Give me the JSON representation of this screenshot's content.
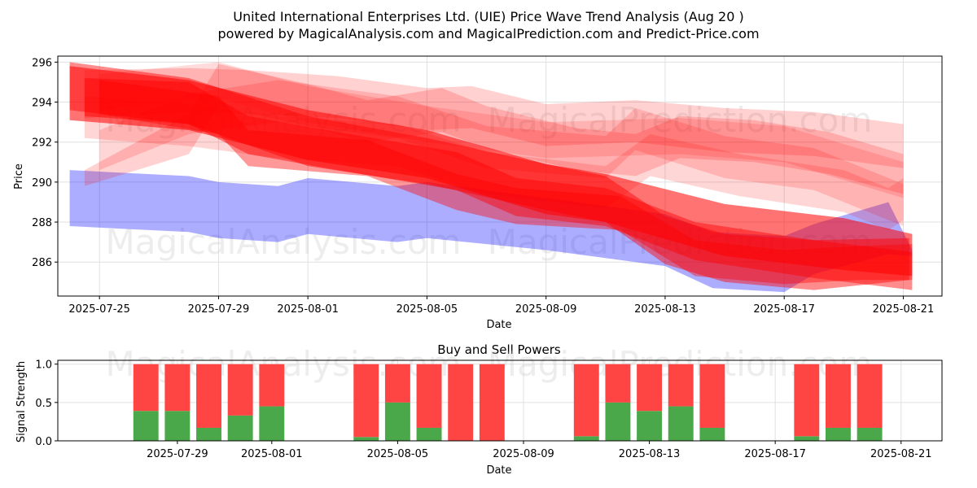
{
  "title_line1": "United International Enterprises Ltd. (UIE) Price Wave Trend Analysis (Aug 20 )",
  "title_line2": "powered by MagicalAnalysis.com and MagicalPrediction.com and Predict-Price.com",
  "watermark_left": "MagicalAnalysis.com",
  "watermark_right": "MagicalPrediction.com",
  "colors": {
    "red": "#ff0000",
    "blue": "#0000ff",
    "buy": "#4aa84a",
    "sell": "#ff4444",
    "grid": "#e0e0e0"
  },
  "chart_data": [
    {
      "type": "area",
      "title": "",
      "xlabel": "Date",
      "ylabel": "Price",
      "xlim": [
        -4.4,
        25.3
      ],
      "ylim": [
        284.3,
        296.3
      ],
      "x_ticks": [
        {
          "day": -3,
          "label": "2025-07-25"
        },
        {
          "day": 1,
          "label": "2025-07-29"
        },
        {
          "day": 4,
          "label": "2025-08-01"
        },
        {
          "day": 8,
          "label": "2025-08-05"
        },
        {
          "day": 12,
          "label": "2025-08-09"
        },
        {
          "day": 16,
          "label": "2025-08-13"
        },
        {
          "day": 20,
          "label": "2025-08-17"
        },
        {
          "day": 24,
          "label": "2025-08-21"
        }
      ],
      "y_ticks": [
        286,
        288,
        290,
        292,
        294,
        296
      ],
      "x_day_zero": "2025-07-28",
      "grid": true,
      "bands": [
        {
          "color": "blue",
          "opacity": 0.32,
          "points": [
            {
              "x": -4,
              "lo": 287.8,
              "hi": 290.6
            },
            {
              "x": 0,
              "lo": 287.5,
              "hi": 290.3
            },
            {
              "x": 1,
              "lo": 287.2,
              "hi": 290.0
            },
            {
              "x": 3,
              "lo": 287.0,
              "hi": 289.8
            },
            {
              "x": 4,
              "lo": 287.4,
              "hi": 290.2
            },
            {
              "x": 7,
              "lo": 287.0,
              "hi": 289.8
            },
            {
              "x": 8,
              "lo": 287.2,
              "hi": 290.0
            },
            {
              "x": 12,
              "lo": 286.6,
              "hi": 289.2
            },
            {
              "x": 16,
              "lo": 285.8,
              "hi": 288.4
            },
            {
              "x": 17.6,
              "lo": 284.7,
              "hi": 287.5
            },
            {
              "x": 20,
              "lo": 284.5,
              "hi": 287.3
            },
            {
              "x": 21,
              "lo": 285.4,
              "hi": 287.9
            },
            {
              "x": 23.5,
              "lo": 286.4,
              "hi": 289.0
            },
            {
              "x": 24.3,
              "lo": 286.3,
              "hi": 286.6
            }
          ]
        },
        {
          "color": "red",
          "opacity": 0.55,
          "points": [
            {
              "x": -4,
              "lo": 293.1,
              "hi": 295.8
            },
            {
              "x": 0,
              "lo": 292.6,
              "hi": 295.1
            },
            {
              "x": 4,
              "lo": 291.1,
              "hi": 293.6
            },
            {
              "x": 8,
              "lo": 290.2,
              "hi": 292.6
            },
            {
              "x": 12,
              "lo": 288.4,
              "hi": 290.9
            },
            {
              "x": 14,
              "lo": 288.0,
              "hi": 290.4
            },
            {
              "x": 18,
              "lo": 286.3,
              "hi": 288.9
            },
            {
              "x": 22,
              "lo": 285.6,
              "hi": 288.2
            },
            {
              "x": 24.3,
              "lo": 285.3,
              "hi": 287.4
            }
          ]
        },
        {
          "color": "red",
          "opacity": 0.45,
          "points": [
            {
              "x": -4,
              "lo": 293.6,
              "hi": 296.0
            },
            {
              "x": 0,
              "lo": 292.9,
              "hi": 295.2
            },
            {
              "x": 4,
              "lo": 290.8,
              "hi": 293.3
            },
            {
              "x": 8,
              "lo": 289.9,
              "hi": 292.2
            },
            {
              "x": 12,
              "lo": 288.6,
              "hi": 290.9
            },
            {
              "x": 14,
              "lo": 288.0,
              "hi": 290.3
            },
            {
              "x": 16,
              "lo": 285.9,
              "hi": 288.3
            },
            {
              "x": 18,
              "lo": 285.0,
              "hi": 287.4
            },
            {
              "x": 21,
              "lo": 284.6,
              "hi": 287.1
            },
            {
              "x": 24.2,
              "lo": 285.1,
              "hi": 287.2
            }
          ]
        },
        {
          "color": "red",
          "opacity": 0.45,
          "points": [
            {
              "x": -3.5,
              "lo": 293.3,
              "hi": 295.2
            },
            {
              "x": 0,
              "lo": 292.9,
              "hi": 295.0
            },
            {
              "x": 2,
              "lo": 291.4,
              "hi": 293.3
            },
            {
              "x": 5,
              "lo": 290.6,
              "hi": 292.5
            },
            {
              "x": 9,
              "lo": 289.6,
              "hi": 291.5
            },
            {
              "x": 11,
              "lo": 288.3,
              "hi": 290.2
            },
            {
              "x": 14,
              "lo": 287.8,
              "hi": 289.7
            },
            {
              "x": 17,
              "lo": 286.1,
              "hi": 288.0
            },
            {
              "x": 21,
              "lo": 285.2,
              "hi": 287.1
            },
            {
              "x": 24.3,
              "lo": 284.6,
              "hi": 286.5
            }
          ]
        },
        {
          "color": "red",
          "opacity": 0.4,
          "points": [
            {
              "x": -3,
              "lo": 293.4,
              "hi": 295.1
            },
            {
              "x": 1,
              "lo": 292.4,
              "hi": 294.3
            },
            {
              "x": 2,
              "lo": 290.8,
              "hi": 292.6
            },
            {
              "x": 6,
              "lo": 290.3,
              "hi": 292.1
            },
            {
              "x": 9,
              "lo": 288.6,
              "hi": 290.4
            },
            {
              "x": 11,
              "lo": 287.9,
              "hi": 289.7
            },
            {
              "x": 14.5,
              "lo": 287.6,
              "hi": 289.3
            },
            {
              "x": 17,
              "lo": 285.3,
              "hi": 287.1
            },
            {
              "x": 20,
              "lo": 284.9,
              "hi": 286.6
            },
            {
              "x": 22.5,
              "lo": 285.1,
              "hi": 286.8
            },
            {
              "x": 24.3,
              "lo": 285.1,
              "hi": 286.9
            }
          ]
        },
        {
          "color": "red",
          "opacity": 0.18,
          "points": [
            {
              "x": -3.5,
              "lo": 293.2,
              "hi": 295.6
            },
            {
              "x": 0,
              "lo": 293.5,
              "hi": 295.7
            },
            {
              "x": 2,
              "lo": 293.4,
              "hi": 295.6
            },
            {
              "x": 5,
              "lo": 293.2,
              "hi": 295.3
            },
            {
              "x": 8,
              "lo": 292.6,
              "hi": 294.7
            },
            {
              "x": 9.5,
              "lo": 292.7,
              "hi": 294.8
            },
            {
              "x": 12,
              "lo": 291.8,
              "hi": 293.9
            },
            {
              "x": 15,
              "lo": 292.0,
              "hi": 294.1
            },
            {
              "x": 18,
              "lo": 291.5,
              "hi": 293.7
            },
            {
              "x": 21,
              "lo": 291.3,
              "hi": 293.5
            },
            {
              "x": 24,
              "lo": 290.7,
              "hi": 292.9
            }
          ]
        },
        {
          "color": "red",
          "opacity": 0.18,
          "points": [
            {
              "x": -3.5,
              "lo": 289.8,
              "hi": 290.6
            },
            {
              "x": 0,
              "lo": 291.4,
              "hi": 293.4
            },
            {
              "x": 1,
              "lo": 293.8,
              "hi": 295.9
            },
            {
              "x": 4,
              "lo": 292.8,
              "hi": 294.9
            },
            {
              "x": 6,
              "lo": 292.0,
              "hi": 294.1
            },
            {
              "x": 8.5,
              "lo": 292.5,
              "hi": 294.7
            },
            {
              "x": 10,
              "lo": 291.7,
              "hi": 293.8
            },
            {
              "x": 13,
              "lo": 290.6,
              "hi": 292.7
            },
            {
              "x": 15,
              "lo": 290.3,
              "hi": 292.4
            },
            {
              "x": 16.5,
              "lo": 291.2,
              "hi": 293.3
            },
            {
              "x": 19,
              "lo": 291.0,
              "hi": 293.1
            },
            {
              "x": 21.5,
              "lo": 290.4,
              "hi": 292.5
            },
            {
              "x": 24,
              "lo": 289.4,
              "hi": 291.4
            }
          ]
        },
        {
          "color": "red",
          "opacity": 0.16,
          "points": [
            {
              "x": -3,
              "lo": 290.6,
              "hi": 292.6
            },
            {
              "x": 0,
              "lo": 292.4,
              "hi": 294.4
            },
            {
              "x": 3,
              "lo": 293.0,
              "hi": 295.1
            },
            {
              "x": 7,
              "lo": 292.2,
              "hi": 294.3
            },
            {
              "x": 10,
              "lo": 290.7,
              "hi": 292.8
            },
            {
              "x": 14,
              "lo": 290.2,
              "hi": 292.3
            },
            {
              "x": 15,
              "lo": 291.6,
              "hi": 293.7
            },
            {
              "x": 18,
              "lo": 290.2,
              "hi": 292.3
            },
            {
              "x": 21,
              "lo": 289.6,
              "hi": 291.7
            },
            {
              "x": 24,
              "lo": 287.8,
              "hi": 289.9
            }
          ]
        },
        {
          "color": "red",
          "opacity": 0.16,
          "points": [
            {
              "x": -3.5,
              "lo": 292.2,
              "hi": 294.3
            },
            {
              "x": 0,
              "lo": 291.8,
              "hi": 293.9
            },
            {
              "x": 3,
              "lo": 291.2,
              "hi": 293.3
            },
            {
              "x": 7,
              "lo": 290.8,
              "hi": 292.9
            },
            {
              "x": 10,
              "lo": 289.4,
              "hi": 291.5
            },
            {
              "x": 14,
              "lo": 288.7,
              "hi": 290.8
            },
            {
              "x": 15.5,
              "lo": 290.3,
              "hi": 292.4
            },
            {
              "x": 18.5,
              "lo": 289.3,
              "hi": 291.4
            },
            {
              "x": 22,
              "lo": 288.5,
              "hi": 290.6
            },
            {
              "x": 23.5,
              "lo": 287.6,
              "hi": 289.7
            },
            {
              "x": 24,
              "lo": 288.1,
              "hi": 290.2
            }
          ]
        },
        {
          "color": "red",
          "opacity": 0.14,
          "points": [
            {
              "x": -3,
              "lo": 293.6,
              "hi": 295.4
            },
            {
              "x": 1,
              "lo": 294.2,
              "hi": 296.0
            },
            {
              "x": 4,
              "lo": 293.0,
              "hi": 294.8
            },
            {
              "x": 8,
              "lo": 292.0,
              "hi": 293.8
            },
            {
              "x": 12,
              "lo": 291.2,
              "hi": 293.0
            },
            {
              "x": 16.5,
              "lo": 291.4,
              "hi": 293.2
            },
            {
              "x": 20,
              "lo": 291.0,
              "hi": 292.8
            },
            {
              "x": 24,
              "lo": 289.2,
              "hi": 291.0
            }
          ]
        }
      ]
    },
    {
      "type": "bar",
      "title": "Buy and Sell Powers",
      "xlabel": "Date",
      "ylabel": "Signal Strength",
      "xlim": [
        -2.8,
        25.3
      ],
      "ylim": [
        0,
        1.05
      ],
      "y_ticks": [
        "0.0",
        "0.5",
        "1.0"
      ],
      "x_ticks": [
        {
          "day": 1,
          "label": "2025-07-29"
        },
        {
          "day": 4,
          "label": "2025-08-01"
        },
        {
          "day": 8,
          "label": "2025-08-05"
        },
        {
          "day": 12,
          "label": "2025-08-09"
        },
        {
          "day": 16,
          "label": "2025-08-13"
        },
        {
          "day": 20,
          "label": "2025-08-17"
        },
        {
          "day": 24,
          "label": "2025-08-21"
        }
      ],
      "x_day_zero": "2025-07-28",
      "grid": true,
      "series": [
        {
          "name": "Buy",
          "color": "buy"
        },
        {
          "name": "Sell",
          "color": "sell"
        }
      ],
      "categories": [
        "2025-07-28",
        "2025-07-29",
        "2025-07-30",
        "2025-07-31",
        "2025-08-01",
        "2025-08-04",
        "2025-08-05",
        "2025-08-06",
        "2025-08-07",
        "2025-08-08",
        "2025-08-11",
        "2025-08-12",
        "2025-08-13",
        "2025-08-14",
        "2025-08-15",
        "2025-08-18",
        "2025-08-19",
        "2025-08-20"
      ],
      "days": [
        0,
        1,
        2,
        3,
        4,
        7,
        8,
        9,
        10,
        11,
        14,
        15,
        16,
        17,
        18,
        21,
        22,
        23
      ],
      "buy": [
        0.39,
        0.39,
        0.17,
        0.33,
        0.45,
        0.05,
        0.5,
        0.17,
        0.0,
        0.0,
        0.06,
        0.5,
        0.39,
        0.45,
        0.17,
        0.06,
        0.17,
        0.17
      ],
      "total": [
        1.0,
        1.0,
        1.0,
        1.0,
        1.0,
        1.0,
        1.0,
        1.0,
        1.0,
        1.0,
        1.0,
        1.0,
        1.0,
        1.0,
        1.0,
        1.0,
        1.0,
        1.0
      ]
    }
  ]
}
